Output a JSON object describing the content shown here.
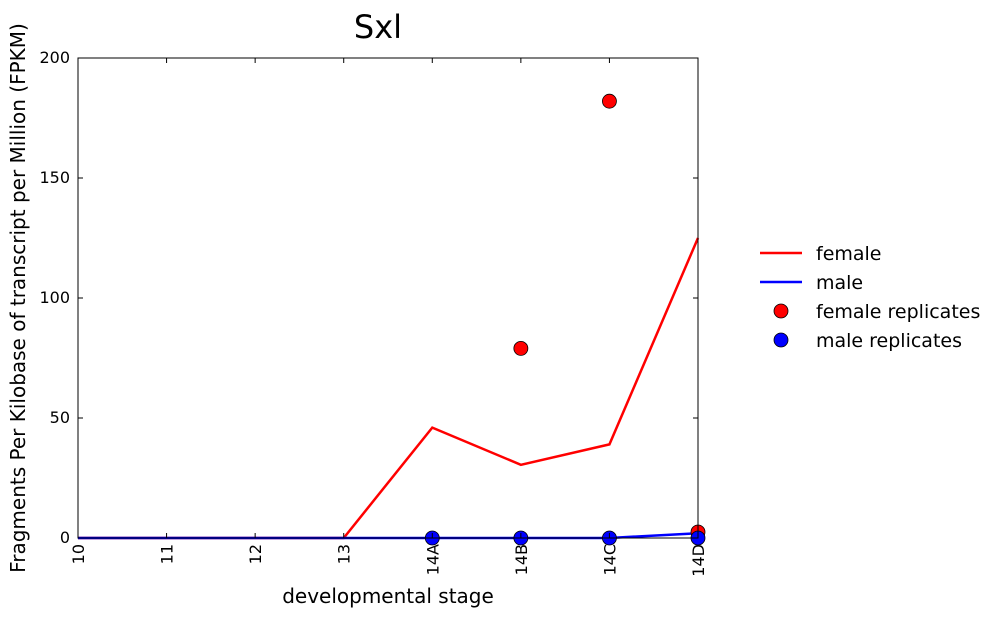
{
  "chart_data": {
    "type": "line",
    "title": "Sxl",
    "xlabel": "developmental stage",
    "ylabel": "Fragments Per Kilobase of transcript per Million (FPKM)",
    "categories": [
      "10",
      "11",
      "12",
      "13",
      "14A",
      "14B",
      "14C",
      "14D"
    ],
    "yticks": [
      0,
      50,
      100,
      150,
      200
    ],
    "ylim": [
      0,
      200
    ],
    "grid": false,
    "legend_position": "right",
    "series": [
      {
        "name": "female",
        "kind": "line",
        "color": "#ff0000",
        "values": [
          0,
          0,
          0,
          0,
          46,
          30.5,
          39,
          125
        ]
      },
      {
        "name": "male",
        "kind": "line",
        "color": "#0000ff",
        "values": [
          0,
          0,
          0,
          0,
          0,
          0,
          0,
          2
        ]
      },
      {
        "name": "female replicates",
        "kind": "scatter",
        "color": "#ff0000",
        "points": [
          {
            "x": "14B",
            "y": 79
          },
          {
            "x": "14C",
            "y": 182
          },
          {
            "x": "14D",
            "y": 2.5
          }
        ]
      },
      {
        "name": "male replicates",
        "kind": "scatter",
        "color": "#0000ff",
        "points": [
          {
            "x": "14A",
            "y": 0
          },
          {
            "x": "14B",
            "y": 0
          },
          {
            "x": "14C",
            "y": 0
          },
          {
            "x": "14D",
            "y": 0
          }
        ]
      }
    ]
  }
}
